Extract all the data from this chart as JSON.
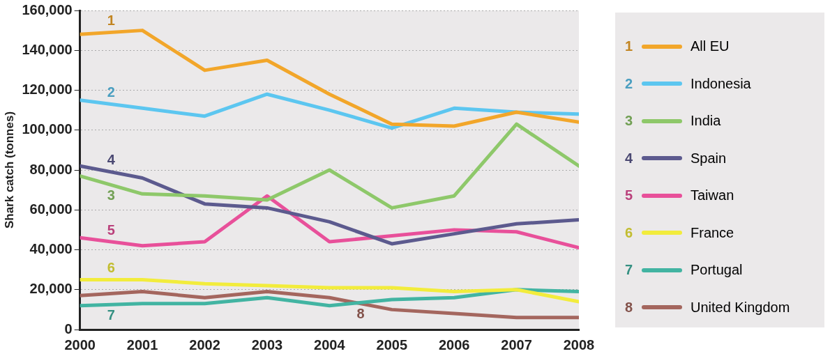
{
  "chart_data": {
    "type": "line",
    "ylabel": "Shark catch (tonnes)",
    "x": [
      2000,
      2001,
      2002,
      2003,
      2004,
      2005,
      2006,
      2007,
      2008
    ],
    "xlim": [
      2000,
      2008
    ],
    "xticks": [
      2000,
      2001,
      2002,
      2003,
      2004,
      2005,
      2006,
      2007,
      2008
    ],
    "ylim": [
      0,
      160000
    ],
    "yticks": [
      0,
      {
        "value": 20000,
        "label": "20,000"
      },
      {
        "value": 40000,
        "label": "40,000"
      },
      {
        "value": 60000,
        "label": "60,000"
      },
      {
        "value": 80000,
        "label": "80,000"
      },
      {
        "value": 100000,
        "label": "100,000"
      },
      {
        "value": 120000,
        "label": "120,000"
      },
      {
        "value": 140000,
        "label": "140,000"
      },
      {
        "value": 160000,
        "label": "160,000"
      }
    ],
    "grid": "y",
    "legend": "right",
    "marker": "none",
    "line_style": "solid",
    "series": [
      {
        "name": "All EU",
        "color": "#f2a62a",
        "values": [
          148000,
          150000,
          130000,
          135000,
          118000,
          103000,
          102000,
          109000,
          104000
        ]
      },
      {
        "name": "Indonesia",
        "color": "#5cc6f0",
        "values": [
          115000,
          111000,
          107000,
          118000,
          110000,
          101000,
          111000,
          109000,
          108000
        ]
      },
      {
        "name": "India",
        "color": "#8ec86a",
        "values": [
          77000,
          68000,
          67000,
          65000,
          80000,
          61000,
          67000,
          103000,
          82000
        ]
      },
      {
        "name": "Spain",
        "color": "#5c5a8e",
        "values": [
          82000,
          76000,
          63000,
          61000,
          54000,
          43000,
          48000,
          53000,
          55000
        ]
      },
      {
        "name": "Taiwan",
        "color": "#e8509a",
        "values": [
          46000,
          42000,
          44000,
          67000,
          44000,
          47000,
          50000,
          49000,
          41000
        ]
      },
      {
        "name": "France",
        "color": "#f2ec3c",
        "values": [
          25000,
          25000,
          23000,
          22000,
          21000,
          21000,
          19000,
          20000,
          14000
        ]
      },
      {
        "name": "Portugal",
        "color": "#42b4a2",
        "values": [
          12000,
          13000,
          13000,
          16000,
          12000,
          15000,
          16000,
          20000,
          19000
        ]
      },
      {
        "name": "United Kingdom",
        "color": "#a4665e",
        "values": [
          17000,
          19000,
          16000,
          19000,
          16000,
          10000,
          8000,
          6000,
          6000
        ]
      }
    ],
    "annotations": [
      "1",
      "2",
      "3",
      "4",
      "5",
      "6",
      "7",
      "8"
    ]
  }
}
